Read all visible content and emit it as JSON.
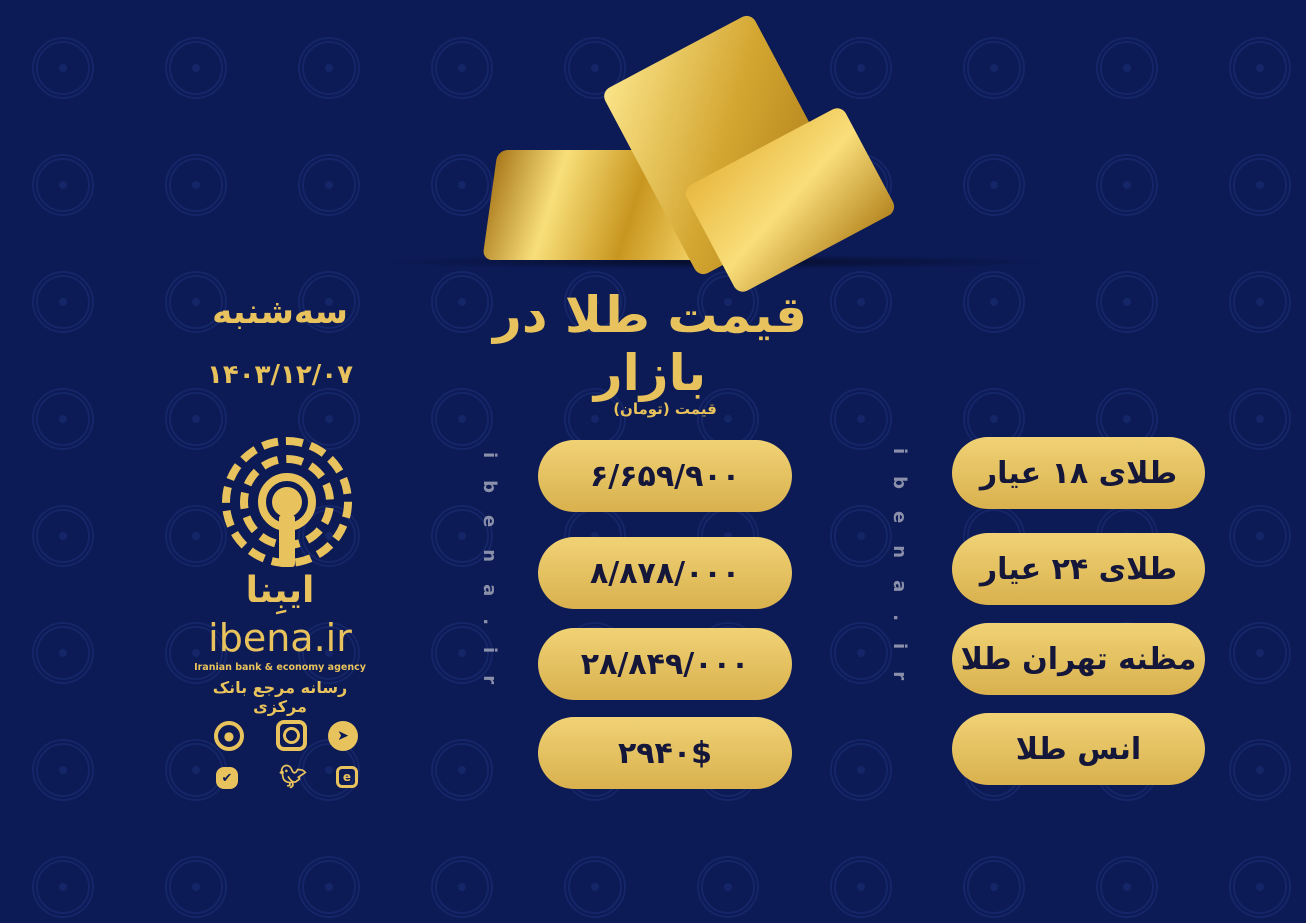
{
  "title": "قیمت طلا در بازار",
  "day": "سه‌شنبه",
  "date": "۱۴۰۳/۱۲/۰۷",
  "price_unit_label": "قیمت (تومان)",
  "watermark_vertical": "ibena.ir",
  "rows": [
    {
      "label": "طلای ۱۸ عیار",
      "price": "۶/۶۵۹/۹۰۰"
    },
    {
      "label": "طلای ۲۴ عیار",
      "price": "۸/۸۷۸/۰۰۰"
    },
    {
      "label": "مظنه تهران طلا",
      "price": "۲۸/۸۴۹/۰۰۰"
    },
    {
      "label": "انس طلا",
      "price": "۲۹۴۰$"
    }
  ],
  "brand": {
    "name_fa": "ایبِنا",
    "name_en": "ibena.ir",
    "tagline_en": "Iranian bank & economy agency",
    "tagline_fa": "رسانه مرجع بانک مرکزی"
  },
  "social_icons": [
    "aparat-icon",
    "instagram-icon",
    "telegram-icon",
    "verified-icon",
    "twitter-icon",
    "eitaa-icon"
  ],
  "colors": {
    "background": "#0c1a55",
    "gold": "#e8c25c",
    "pill_text": "#14163a"
  }
}
